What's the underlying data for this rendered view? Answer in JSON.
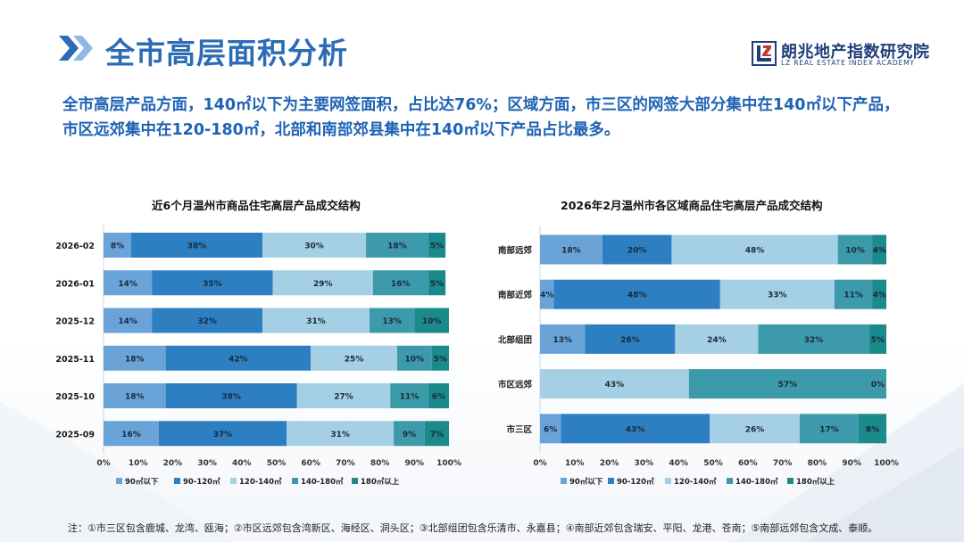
{
  "header": {
    "title": "全市高层面积分析",
    "logo_cn": "朗兆地产指数研究院",
    "logo_en": "LZ REAL ESTATE INDEX ACADEMY"
  },
  "summary": "全市高层产品方面，140㎡以下为主要网签面积，占比达76%；区域方面，市三区的网签大部分集中在140㎡以下产品，市区远郊集中在120-180㎡，北部和南部郊县集中在140㎡以下产品占比最多。",
  "colors": {
    "accent": "#2b6cb5",
    "series": [
      "#6aa3d8",
      "#2d7fc1",
      "#a4cfe4",
      "#3c9aaa",
      "#1b8a8a"
    ]
  },
  "chart_data": [
    {
      "type": "bar",
      "orientation": "horizontal",
      "stacked": "percent",
      "title": "近6个月温州市商品住宅高层产品成交结构",
      "categories": [
        "2026-02",
        "2026-01",
        "2025-12",
        "2025-11",
        "2025-10",
        "2025-09"
      ],
      "series": [
        {
          "name": "90㎡以下",
          "values": [
            8,
            14,
            14,
            18,
            18,
            16
          ]
        },
        {
          "name": "90-120㎡",
          "values": [
            38,
            35,
            32,
            42,
            38,
            37
          ]
        },
        {
          "name": "120-140㎡",
          "values": [
            30,
            29,
            31,
            25,
            27,
            31
          ]
        },
        {
          "name": "140-180㎡",
          "values": [
            18,
            16,
            13,
            10,
            11,
            9
          ]
        },
        {
          "name": "180㎡以上",
          "values": [
            5,
            5,
            10,
            5,
            6,
            7
          ]
        }
      ],
      "xticks": [
        "0%",
        "10%",
        "20%",
        "30%",
        "40%",
        "50%",
        "60%",
        "70%",
        "80%",
        "90%",
        "100%"
      ],
      "xlim": [
        0,
        100
      ],
      "legend": "bottom"
    },
    {
      "type": "bar",
      "orientation": "horizontal",
      "stacked": "percent",
      "title": "2026年2月温州市各区域商品住宅高层产品成交结构",
      "categories": [
        "南部远郊",
        "南部近郊",
        "北部组团",
        "市区远郊",
        "市三区"
      ],
      "series": [
        {
          "name": "90㎡以下",
          "values": [
            18,
            4,
            13,
            0,
            6
          ]
        },
        {
          "name": "90-120㎡",
          "values": [
            20,
            48,
            26,
            null,
            43
          ]
        },
        {
          "name": "120-140㎡",
          "values": [
            48,
            33,
            24,
            43,
            26
          ]
        },
        {
          "name": "140-180㎡",
          "values": [
            10,
            11,
            32,
            57,
            17
          ]
        },
        {
          "name": "180㎡以上",
          "values": [
            4,
            4,
            5,
            0,
            8
          ]
        }
      ],
      "xticks": [
        "0%",
        "10%",
        "20%",
        "30%",
        "40%",
        "50%",
        "60%",
        "70%",
        "80%",
        "90%",
        "100%"
      ],
      "xlim": [
        0,
        100
      ],
      "legend": "bottom"
    }
  ],
  "footnote": "注：①市三区包含鹿城、龙湾、瓯海；②市区远郊包含湾新区、海经区、洞头区；③北部组团包含乐清市、永嘉县；④南部近郊包含瑞安、平阳、龙港、苍南；⑤南部远郊包含文成、泰顺。"
}
